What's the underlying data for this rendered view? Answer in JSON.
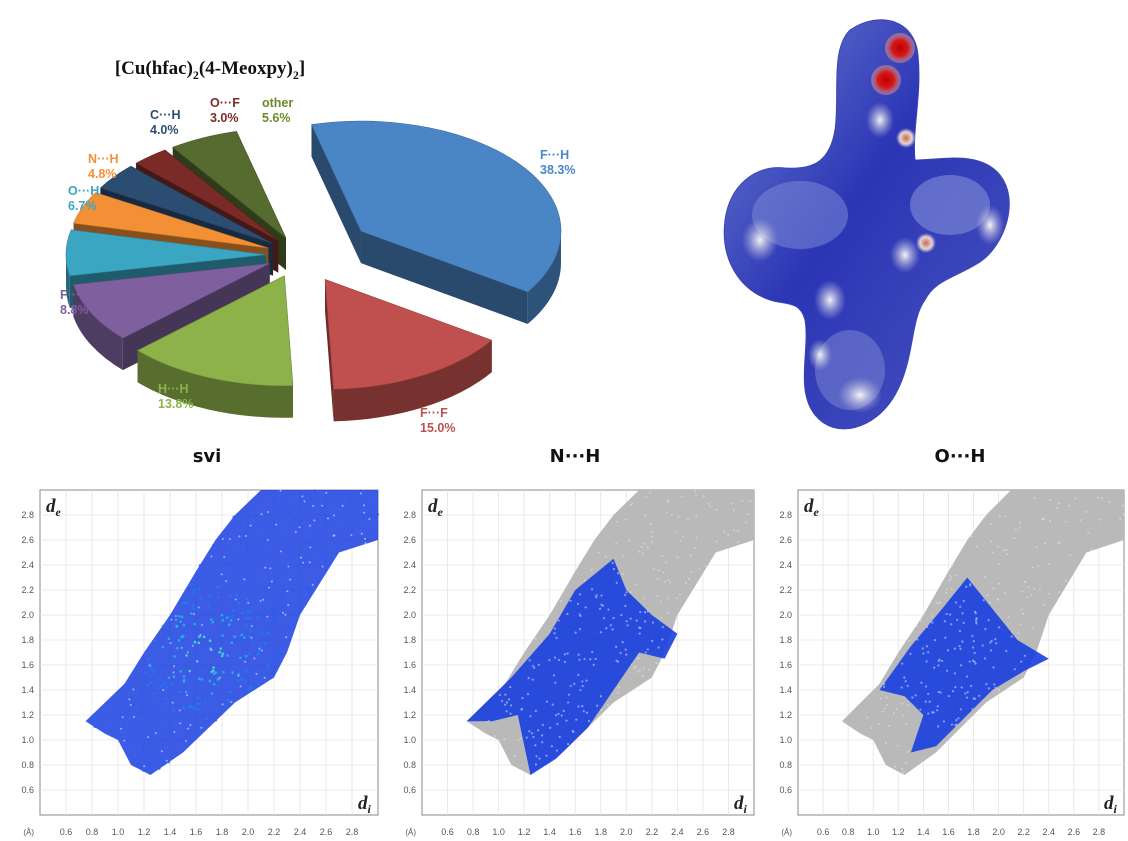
{
  "pie": {
    "title_main": "[Cu(hfac)",
    "title_sub1": "2",
    "title_mid": "(4-Meoxpy)",
    "title_sub2": "2",
    "title_end": "]"
  },
  "chart_data": [
    {
      "type": "pie",
      "title": "[Cu(hfac)2(4-Meoxpy)2]",
      "slices": [
        {
          "name": "F···H",
          "value_label": "38.3%",
          "value": 38.3,
          "color": "#4a86c6"
        },
        {
          "name": "F···F",
          "value_label": "15.0%",
          "value": 15.0,
          "color": "#c0504d"
        },
        {
          "name": "H···H",
          "value_label": "13.8%",
          "value": 13.8,
          "color": "#8db24a"
        },
        {
          "name": "F···C",
          "value_label": "8.8%",
          "value": 8.8,
          "color": "#7e609e"
        },
        {
          "name": "O···H",
          "value_label": "6.7%",
          "value": 6.7,
          "color": "#3aa6c2"
        },
        {
          "name": "N···H",
          "value_label": "4.8%",
          "value": 4.8,
          "color": "#f39035"
        },
        {
          "name": "C···H",
          "value_label": "4.0%",
          "value": 4.0,
          "color": "#2b4d72"
        },
        {
          "name": "O···F",
          "value_label": "3.0%",
          "value": 3.0,
          "color": "#7a2b28"
        },
        {
          "name": "other",
          "value_label": "5.6%",
          "value": 5.6,
          "color": "#556b2f"
        }
      ]
    },
    {
      "type": "scatter",
      "title": "svi",
      "xlabel": "di",
      "ylabel": "de",
      "unit_label": "(Å)",
      "xticks": [
        "0.6",
        "0.8",
        "1.0",
        "1.2",
        "1.4",
        "1.6",
        "1.8",
        "2.0",
        "2.2",
        "2.4",
        "2.6",
        "2.8"
      ],
      "yticks": [
        "2.8",
        "2.6",
        "2.4",
        "2.2",
        "2.0",
        "1.8",
        "1.6",
        "1.4",
        "1.2",
        "1.0",
        "0.8",
        "0.6"
      ],
      "xlim": [
        0.4,
        3.0
      ],
      "ylim": [
        0.4,
        3.0
      ]
    },
    {
      "type": "scatter",
      "title": "N···H",
      "xlabel": "di",
      "ylabel": "de",
      "unit_label": "(Å)",
      "xticks": [
        "0.6",
        "0.8",
        "1.0",
        "1.2",
        "1.4",
        "1.6",
        "1.8",
        "2.0",
        "2.2",
        "2.4",
        "2.6",
        "2.8"
      ],
      "yticks": [
        "2.8",
        "2.6",
        "2.4",
        "2.2",
        "2.0",
        "1.8",
        "1.6",
        "1.4",
        "1.2",
        "1.0",
        "0.8",
        "0.6"
      ],
      "xlim": [
        0.4,
        3.0
      ],
      "ylim": [
        0.4,
        3.0
      ]
    },
    {
      "type": "scatter",
      "title": "O···H",
      "xlabel": "di",
      "ylabel": "de",
      "unit_label": "(Å)",
      "xticks": [
        "0.6",
        "0.8",
        "1.0",
        "1.2",
        "1.4",
        "1.6",
        "1.8",
        "2.0",
        "2.2",
        "2.4",
        "2.6",
        "2.8"
      ],
      "yticks": [
        "2.8",
        "2.6",
        "2.4",
        "2.2",
        "2.0",
        "1.8",
        "1.6",
        "1.4",
        "1.2",
        "1.0",
        "0.8",
        "0.6"
      ],
      "xlim": [
        0.4,
        3.0
      ],
      "ylim": [
        0.4,
        3.0
      ]
    }
  ]
}
